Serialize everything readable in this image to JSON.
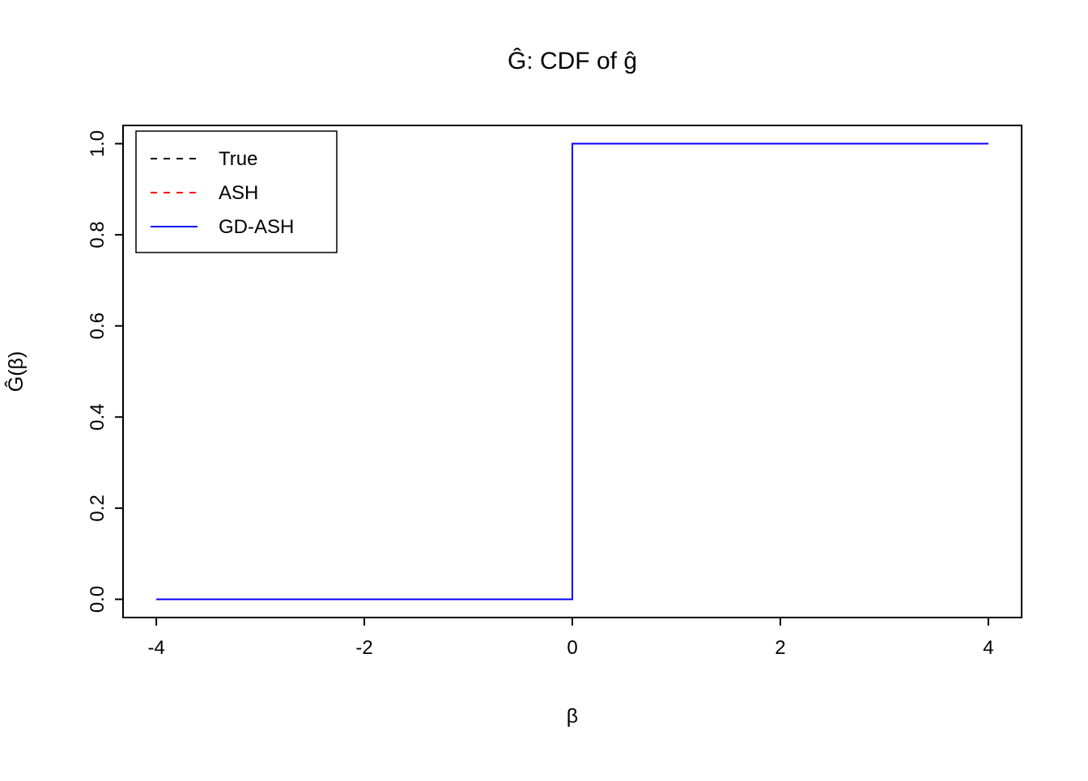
{
  "chart_data": {
    "type": "line",
    "title": "Ĝ: CDF of ĝ",
    "xlabel": "β",
    "ylabel": "Ĝ(β)",
    "xlim": [
      -4.32,
      4.32
    ],
    "ylim": [
      -0.04,
      1.04
    ],
    "grid": false,
    "legend_position": "top-left",
    "xticks": [
      {
        "value": -4,
        "label": "-4"
      },
      {
        "value": -2,
        "label": "-2"
      },
      {
        "value": 0,
        "label": "0"
      },
      {
        "value": 2,
        "label": "2"
      },
      {
        "value": 4,
        "label": "4"
      }
    ],
    "yticks": [
      {
        "value": 0.0,
        "label": "0.0"
      },
      {
        "value": 0.2,
        "label": "0.2"
      },
      {
        "value": 0.4,
        "label": "0.4"
      },
      {
        "value": 0.6,
        "label": "0.6"
      },
      {
        "value": 0.8,
        "label": "0.8"
      },
      {
        "value": 1.0,
        "label": "1.0"
      }
    ],
    "legend": [
      {
        "label": "True",
        "color": "#000000",
        "dash": true
      },
      {
        "label": "ASH",
        "color": "#ff0000",
        "dash": true
      },
      {
        "label": "GD-ASH",
        "color": "#0000ff",
        "dash": false
      }
    ],
    "series": [
      {
        "name": "True",
        "color": "#000000",
        "dash": true,
        "points": [
          [
            -4,
            0
          ],
          [
            0,
            0
          ],
          [
            0,
            1
          ],
          [
            4,
            1
          ]
        ]
      },
      {
        "name": "ASH",
        "color": "#ff0000",
        "dash": true,
        "points": [
          [
            -4,
            0
          ],
          [
            0,
            0
          ],
          [
            0,
            1
          ],
          [
            4,
            1
          ]
        ]
      },
      {
        "name": "GD-ASH",
        "color": "#0000ff",
        "dash": false,
        "points": [
          [
            -4,
            0
          ],
          [
            0,
            0
          ],
          [
            0,
            1
          ],
          [
            4,
            1
          ]
        ]
      }
    ]
  }
}
